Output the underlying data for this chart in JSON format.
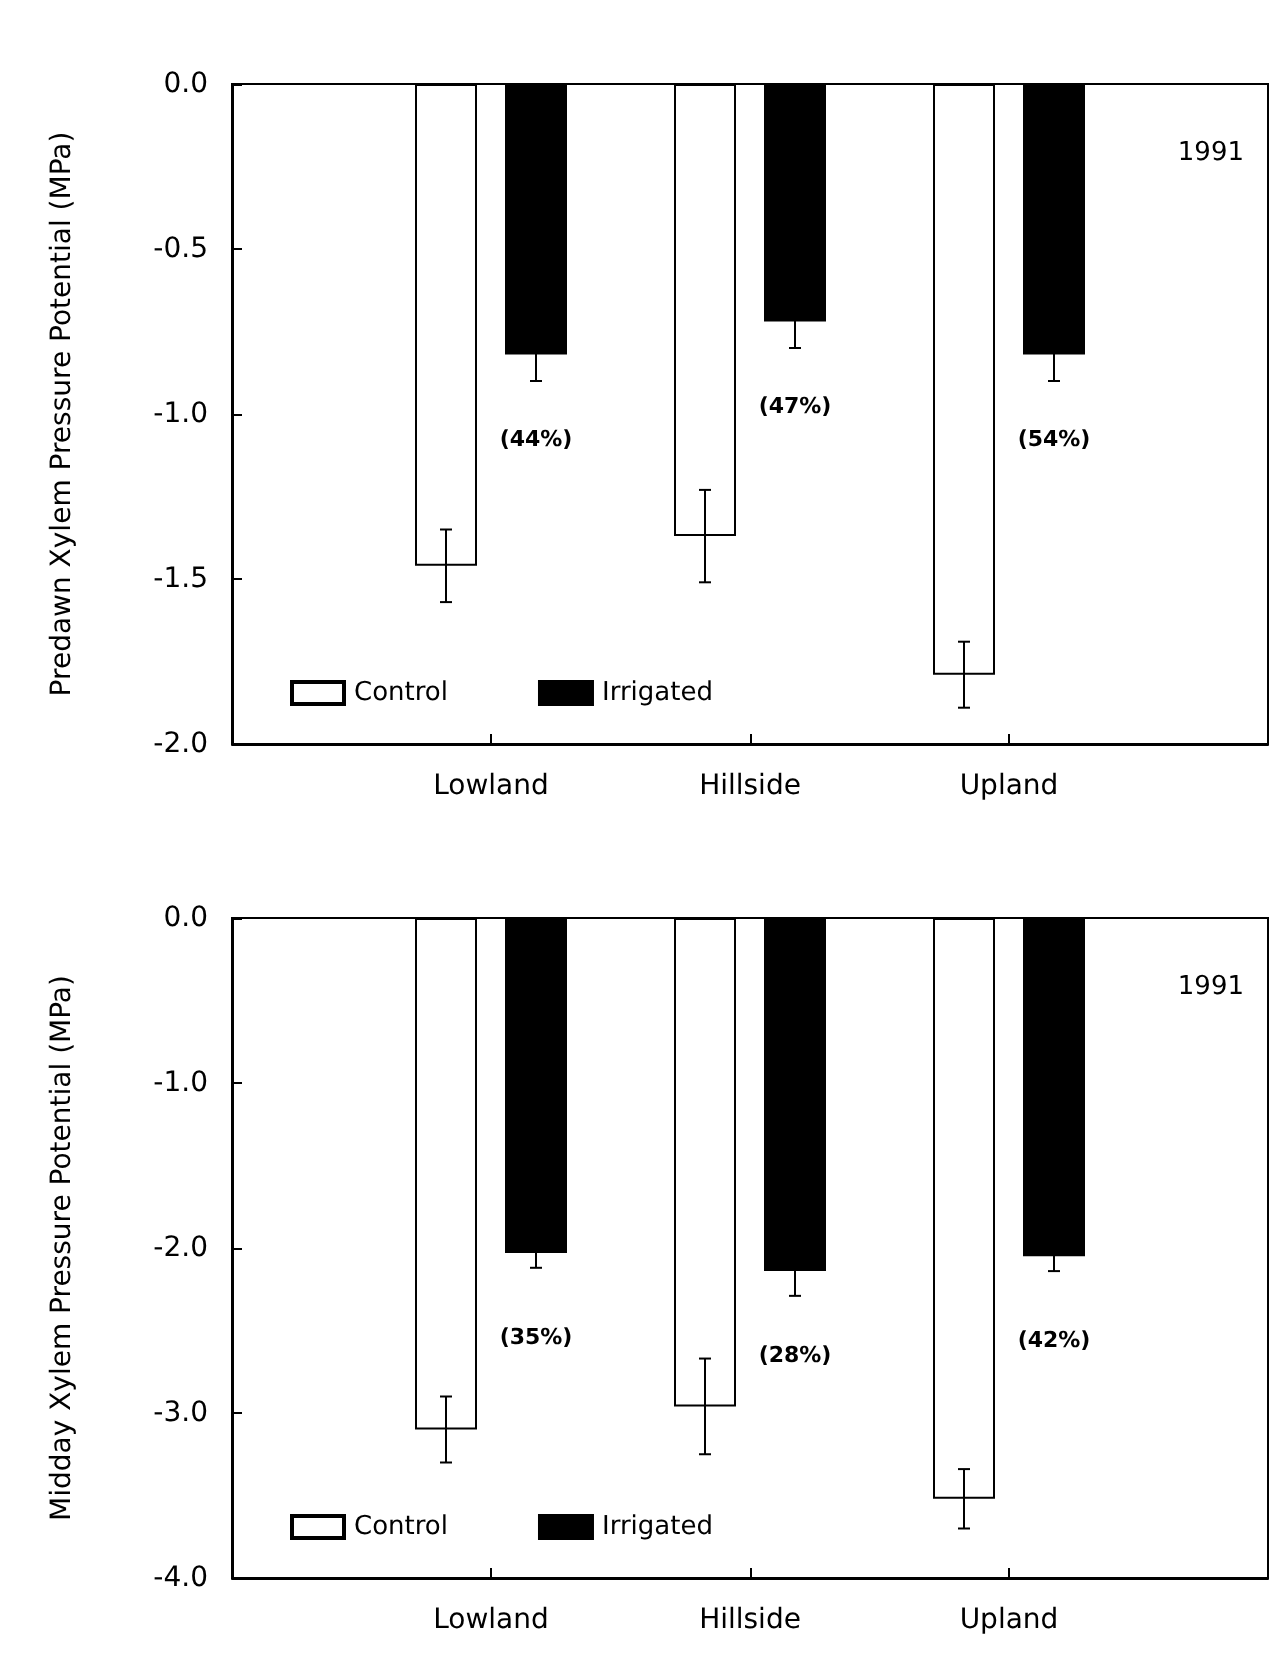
{
  "chart_data": [
    {
      "type": "bar",
      "ylabel": "Predawn Xylem Pressure Potential (MPa)",
      "categories": [
        "Lowland",
        "Hillside",
        "Upland"
      ],
      "series": [
        {
          "name": "Control",
          "color": "#ffffff",
          "values": [
            -1.46,
            -1.37,
            -1.79
          ],
          "errors": [
            0.11,
            0.14,
            0.1
          ]
        },
        {
          "name": "Irrigated",
          "color": "#000000",
          "values": [
            -0.82,
            -0.72,
            -0.82
          ],
          "errors": [
            0.08,
            0.08,
            0.08
          ]
        }
      ],
      "ylim": [
        -2,
        0
      ],
      "yticks": [
        {
          "value": 0,
          "label": "0.0"
        },
        {
          "value": -0.5,
          "label": "-0.5"
        },
        {
          "value": -1,
          "label": "-1.0"
        },
        {
          "value": -1.5,
          "label": "-1.5"
        },
        {
          "value": -2,
          "label": "-2.0"
        }
      ],
      "annotations": [
        "1991",
        "(44%)",
        "(47%)",
        "(54%)"
      ],
      "legend": "bottom left",
      "grid": false
    },
    {
      "type": "bar",
      "ylabel": "Midday Xylem Pressure Potential (MPa)",
      "categories": [
        "Lowland",
        "Hillside",
        "Upland"
      ],
      "series": [
        {
          "name": "Control",
          "color": "#ffffff",
          "values": [
            -3.1,
            -2.96,
            -3.52
          ],
          "errors": [
            0.2,
            0.29,
            0.18
          ]
        },
        {
          "name": "Irrigated",
          "color": "#000000",
          "values": [
            -2.03,
            -2.14,
            -2.05
          ],
          "errors": [
            0.09,
            0.15,
            0.09
          ]
        }
      ],
      "ylim": [
        -4,
        0
      ],
      "yticks": [
        {
          "value": 0,
          "label": "0.0"
        },
        {
          "value": -1,
          "label": "-1.0"
        },
        {
          "value": -2,
          "label": "-2.0"
        },
        {
          "value": -3,
          "label": "-3.0"
        },
        {
          "value": -4,
          "label": "-4.0"
        }
      ],
      "annotations": [
        "1991",
        "(35%)",
        "(28%)",
        "(42%)"
      ],
      "legend": "bottom left",
      "grid": false
    }
  ]
}
